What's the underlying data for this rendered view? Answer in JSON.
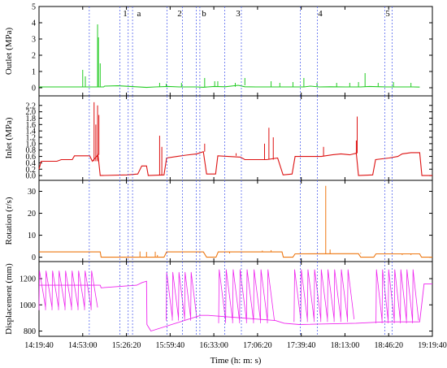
{
  "chart_data": {
    "type": "line",
    "xlabel": "Time (h: m: s)",
    "x_ticks": [
      "14:19:40",
      "14:53:00",
      "15:26:20",
      "15:59:40",
      "16:33:00",
      "17:06:20",
      "17:39:40",
      "18:13:00",
      "18:46:20",
      "19:19:40"
    ],
    "x_range_seconds": [
      51580,
      69580
    ],
    "event_labels": [
      "1",
      "a",
      "2",
      "b",
      "3",
      "4",
      "5"
    ],
    "event_boundaries_time": [
      "14:58:00",
      "15:21:20",
      "15:27:40",
      "15:31:00",
      "15:57:20",
      "16:09:00",
      "16:19:40",
      "16:22:20",
      "16:41:20",
      "16:54:00",
      "17:39:00",
      "17:52:00",
      "18:43:20",
      "18:49:00"
    ],
    "panels": [
      {
        "ylabel": "Outlet (MPa)",
        "ylim": [
          -0.5,
          5
        ],
        "yticks": [
          "0",
          "1",
          "2",
          "3",
          "4",
          "5"
        ],
        "color": "#22cc22",
        "series_name": "Outlet",
        "baseline": [
          [
            51580,
            0.05
          ],
          [
            53700,
            0.05
          ],
          [
            54540,
            0.05
          ],
          [
            54580,
            0.1
          ],
          [
            55200,
            0.12
          ],
          [
            56500,
            0.02
          ],
          [
            56900,
            0.05
          ],
          [
            57500,
            0.08
          ],
          [
            58000,
            0.05
          ],
          [
            58800,
            0.05
          ],
          [
            59100,
            0.03
          ],
          [
            59600,
            0.08
          ],
          [
            60100,
            0.06
          ],
          [
            60700,
            0.15
          ],
          [
            61000,
            0.06
          ],
          [
            61500,
            0.05
          ],
          [
            62300,
            0.05
          ],
          [
            63000,
            0.05
          ],
          [
            63700,
            0.05
          ],
          [
            64000,
            0.1
          ],
          [
            64400,
            0.05
          ],
          [
            64900,
            0.06
          ],
          [
            65600,
            0.05
          ],
          [
            66300,
            0.05
          ],
          [
            66700,
            0.08
          ],
          [
            67200,
            0.06
          ],
          [
            67500,
            0.05
          ],
          [
            67900,
            0.05
          ],
          [
            68300,
            0.05
          ],
          [
            68700,
            0.05
          ],
          [
            69000,
            0.04
          ]
        ],
        "spikes": [
          [
            53580,
            1.1
          ],
          [
            53700,
            0.7
          ],
          [
            54260,
            3.9
          ],
          [
            54300,
            3.1
          ],
          [
            54380,
            1.5
          ],
          [
            57100,
            0.3
          ],
          [
            57400,
            0.25
          ],
          [
            58100,
            0.3
          ],
          [
            59160,
            0.6
          ],
          [
            59620,
            0.4
          ],
          [
            59760,
            0.4
          ],
          [
            60560,
            0.3
          ],
          [
            61000,
            0.6
          ],
          [
            62200,
            0.4
          ],
          [
            62600,
            0.3
          ],
          [
            63200,
            0.35
          ],
          [
            63700,
            0.6
          ],
          [
            64300,
            0.3
          ],
          [
            65200,
            0.3
          ],
          [
            65800,
            0.3
          ],
          [
            66200,
            0.35
          ],
          [
            66500,
            0.9
          ],
          [
            67100,
            0.3
          ],
          [
            67800,
            0.35
          ],
          [
            68600,
            0.3
          ]
        ]
      },
      {
        "ylabel": "Inlet (MPa)",
        "ylim": [
          -0.15,
          2.5
        ],
        "yticks": [
          "0.0",
          "0.2",
          "0.4",
          "0.6",
          "0.8",
          "1.0",
          "1.2",
          "1.4",
          "1.6",
          "1.8",
          "2.0",
          "2.2"
        ],
        "color": "#dd1111",
        "series_name": "Inlet",
        "baseline": [
          [
            51580,
            0.2
          ],
          [
            51680,
            0.45
          ],
          [
            52400,
            0.45
          ],
          [
            52600,
            0.5
          ],
          [
            53100,
            0.5
          ],
          [
            53200,
            0.62
          ],
          [
            53900,
            0.62
          ],
          [
            54020,
            0.45
          ],
          [
            54280,
            0.65
          ],
          [
            54380,
            0.0
          ],
          [
            55600,
            0.02
          ],
          [
            56100,
            0.05
          ],
          [
            56280,
            0.3
          ],
          [
            56500,
            0.3
          ],
          [
            56580,
            0.0
          ],
          [
            57300,
            0.02
          ],
          [
            57420,
            0.55
          ],
          [
            57900,
            0.6
          ],
          [
            58300,
            0.64
          ],
          [
            58800,
            0.68
          ],
          [
            59100,
            0.75
          ],
          [
            59250,
            0.05
          ],
          [
            59660,
            0.05
          ],
          [
            59760,
            0.62
          ],
          [
            60800,
            0.58
          ],
          [
            61000,
            0.5
          ],
          [
            61500,
            0.5
          ],
          [
            62000,
            0.5
          ],
          [
            62500,
            0.55
          ],
          [
            62750,
            0.02
          ],
          [
            63160,
            0.05
          ],
          [
            63300,
            0.6
          ],
          [
            64500,
            0.6
          ],
          [
            65000,
            0.65
          ],
          [
            65400,
            0.68
          ],
          [
            65800,
            0.65
          ],
          [
            66100,
            0.7
          ],
          [
            66200,
            0.0
          ],
          [
            66850,
            0.02
          ],
          [
            66980,
            0.5
          ],
          [
            67600,
            0.55
          ],
          [
            68000,
            0.6
          ],
          [
            68200,
            0.68
          ],
          [
            68600,
            0.72
          ],
          [
            69000,
            0.72
          ],
          [
            69100,
            0.0
          ],
          [
            69580,
            0.0
          ]
        ],
        "spikes": [
          [
            54100,
            2.3
          ],
          [
            54180,
            1.6
          ],
          [
            54260,
            2.2
          ],
          [
            54320,
            1.9
          ],
          [
            57100,
            1.25
          ],
          [
            57200,
            0.9
          ],
          [
            59160,
            1.0
          ],
          [
            60600,
            0.7
          ],
          [
            61900,
            1.0
          ],
          [
            62100,
            1.5
          ],
          [
            62300,
            1.2
          ],
          [
            64600,
            0.9
          ],
          [
            66100,
            1.1
          ],
          [
            66140,
            1.85
          ]
        ]
      },
      {
        "ylabel": "Rotation (r/s)",
        "ylim": [
          -2,
          35
        ],
        "yticks": [
          "0",
          "10",
          "20",
          "30"
        ],
        "color": "#ee7711",
        "series_name": "Rotation",
        "baseline": [
          [
            51580,
            2.4
          ],
          [
            53900,
            2.4
          ],
          [
            54380,
            2.4
          ],
          [
            54420,
            0.0
          ],
          [
            56100,
            0.0
          ],
          [
            56300,
            0.0
          ],
          [
            56700,
            0.0
          ],
          [
            57300,
            0.0
          ],
          [
            57420,
            2.4
          ],
          [
            59100,
            2.4
          ],
          [
            59250,
            0.0
          ],
          [
            59680,
            0.0
          ],
          [
            59780,
            2.4
          ],
          [
            62000,
            2.4
          ],
          [
            62700,
            2.4
          ],
          [
            62760,
            0.0
          ],
          [
            63200,
            0.0
          ],
          [
            63300,
            1.5
          ],
          [
            65600,
            1.6
          ],
          [
            66200,
            1.6
          ],
          [
            66300,
            0.0
          ],
          [
            66900,
            0.0
          ],
          [
            67000,
            1.5
          ],
          [
            69000,
            1.5
          ],
          [
            69080,
            0.0
          ],
          [
            69580,
            0.0
          ]
        ],
        "spikes": [
          [
            56200,
            2.6
          ],
          [
            56500,
            2.4
          ],
          [
            56900,
            2.5
          ],
          [
            57000,
            1.0
          ],
          [
            60300,
            1.7
          ],
          [
            61800,
            3.0
          ],
          [
            62200,
            3.2
          ],
          [
            64700,
            32.5
          ],
          [
            64900,
            3.5
          ],
          [
            66300,
            2.0
          ],
          [
            68200,
            1.0
          ],
          [
            68600,
            1.0
          ]
        ]
      },
      {
        "ylabel": "Displacement (mm)",
        "ylim": [
          760,
          1330
        ],
        "yticks": [
          "800",
          "1000",
          "1200"
        ],
        "color": "#ee22ee",
        "series_name": "Displacement",
        "baseline": [
          [
            51580,
            1150
          ],
          [
            54380,
            1150
          ],
          [
            54420,
            1130
          ],
          [
            56050,
            1150
          ],
          [
            56300,
            1170
          ],
          [
            56500,
            1180
          ],
          [
            56520,
            850
          ],
          [
            56700,
            800
          ],
          [
            58980,
            920
          ],
          [
            59320,
            920
          ],
          [
            62400,
            880
          ],
          [
            62800,
            860
          ],
          [
            63500,
            850
          ],
          [
            66080,
            860
          ],
          [
            67400,
            870
          ],
          [
            69000,
            870
          ],
          [
            69200,
            1160
          ],
          [
            69580,
            1160
          ]
        ],
        "sawtooth_segments": [
          {
            "t_start": 51580,
            "t_end": 54260,
            "teeth": 9,
            "high": 1260,
            "low": 960
          },
          {
            "t_start": 57400,
            "t_end": 58800,
            "teeth": 5,
            "high": 1250,
            "low": 880
          },
          {
            "t_start": 59800,
            "t_end": 62350,
            "teeth": 8,
            "high": 1270,
            "low": 860
          },
          {
            "t_start": 63250,
            "t_end": 66000,
            "teeth": 9,
            "high": 1270,
            "low": 870
          },
          {
            "t_start": 67000,
            "t_end": 68950,
            "teeth": 7,
            "high": 1270,
            "low": 860
          }
        ]
      }
    ]
  }
}
